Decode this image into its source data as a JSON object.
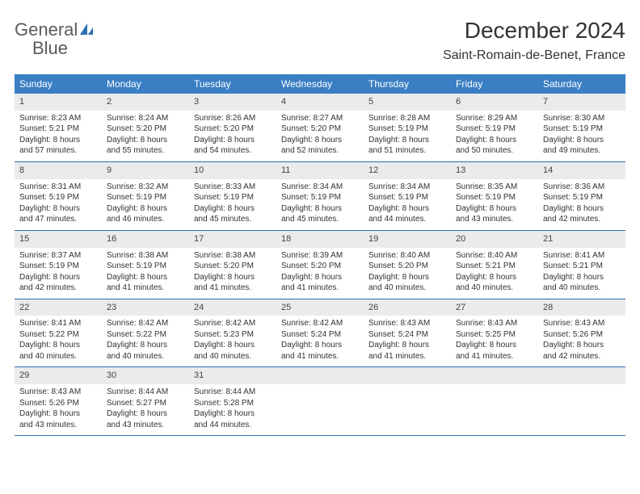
{
  "logo": {
    "text_gray": "General",
    "text_blue": "Blue"
  },
  "title": "December 2024",
  "location": "Saint-Romain-de-Benet, France",
  "colors": {
    "header_bg": "#3a7fc4",
    "header_text": "#ffffff",
    "daynum_bg": "#e9ebed",
    "week_border": "#2d6fb5",
    "body_text": "#333333"
  },
  "day_names": [
    "Sunday",
    "Monday",
    "Tuesday",
    "Wednesday",
    "Thursday",
    "Friday",
    "Saturday"
  ],
  "weeks": [
    [
      {
        "n": "1",
        "sr": "Sunrise: 8:23 AM",
        "ss": "Sunset: 5:21 PM",
        "d1": "Daylight: 8 hours",
        "d2": "and 57 minutes."
      },
      {
        "n": "2",
        "sr": "Sunrise: 8:24 AM",
        "ss": "Sunset: 5:20 PM",
        "d1": "Daylight: 8 hours",
        "d2": "and 55 minutes."
      },
      {
        "n": "3",
        "sr": "Sunrise: 8:26 AM",
        "ss": "Sunset: 5:20 PM",
        "d1": "Daylight: 8 hours",
        "d2": "and 54 minutes."
      },
      {
        "n": "4",
        "sr": "Sunrise: 8:27 AM",
        "ss": "Sunset: 5:20 PM",
        "d1": "Daylight: 8 hours",
        "d2": "and 52 minutes."
      },
      {
        "n": "5",
        "sr": "Sunrise: 8:28 AM",
        "ss": "Sunset: 5:19 PM",
        "d1": "Daylight: 8 hours",
        "d2": "and 51 minutes."
      },
      {
        "n": "6",
        "sr": "Sunrise: 8:29 AM",
        "ss": "Sunset: 5:19 PM",
        "d1": "Daylight: 8 hours",
        "d2": "and 50 minutes."
      },
      {
        "n": "7",
        "sr": "Sunrise: 8:30 AM",
        "ss": "Sunset: 5:19 PM",
        "d1": "Daylight: 8 hours",
        "d2": "and 49 minutes."
      }
    ],
    [
      {
        "n": "8",
        "sr": "Sunrise: 8:31 AM",
        "ss": "Sunset: 5:19 PM",
        "d1": "Daylight: 8 hours",
        "d2": "and 47 minutes."
      },
      {
        "n": "9",
        "sr": "Sunrise: 8:32 AM",
        "ss": "Sunset: 5:19 PM",
        "d1": "Daylight: 8 hours",
        "d2": "and 46 minutes."
      },
      {
        "n": "10",
        "sr": "Sunrise: 8:33 AM",
        "ss": "Sunset: 5:19 PM",
        "d1": "Daylight: 8 hours",
        "d2": "and 45 minutes."
      },
      {
        "n": "11",
        "sr": "Sunrise: 8:34 AM",
        "ss": "Sunset: 5:19 PM",
        "d1": "Daylight: 8 hours",
        "d2": "and 45 minutes."
      },
      {
        "n": "12",
        "sr": "Sunrise: 8:34 AM",
        "ss": "Sunset: 5:19 PM",
        "d1": "Daylight: 8 hours",
        "d2": "and 44 minutes."
      },
      {
        "n": "13",
        "sr": "Sunrise: 8:35 AM",
        "ss": "Sunset: 5:19 PM",
        "d1": "Daylight: 8 hours",
        "d2": "and 43 minutes."
      },
      {
        "n": "14",
        "sr": "Sunrise: 8:36 AM",
        "ss": "Sunset: 5:19 PM",
        "d1": "Daylight: 8 hours",
        "d2": "and 42 minutes."
      }
    ],
    [
      {
        "n": "15",
        "sr": "Sunrise: 8:37 AM",
        "ss": "Sunset: 5:19 PM",
        "d1": "Daylight: 8 hours",
        "d2": "and 42 minutes."
      },
      {
        "n": "16",
        "sr": "Sunrise: 8:38 AM",
        "ss": "Sunset: 5:19 PM",
        "d1": "Daylight: 8 hours",
        "d2": "and 41 minutes."
      },
      {
        "n": "17",
        "sr": "Sunrise: 8:38 AM",
        "ss": "Sunset: 5:20 PM",
        "d1": "Daylight: 8 hours",
        "d2": "and 41 minutes."
      },
      {
        "n": "18",
        "sr": "Sunrise: 8:39 AM",
        "ss": "Sunset: 5:20 PM",
        "d1": "Daylight: 8 hours",
        "d2": "and 41 minutes."
      },
      {
        "n": "19",
        "sr": "Sunrise: 8:40 AM",
        "ss": "Sunset: 5:20 PM",
        "d1": "Daylight: 8 hours",
        "d2": "and 40 minutes."
      },
      {
        "n": "20",
        "sr": "Sunrise: 8:40 AM",
        "ss": "Sunset: 5:21 PM",
        "d1": "Daylight: 8 hours",
        "d2": "and 40 minutes."
      },
      {
        "n": "21",
        "sr": "Sunrise: 8:41 AM",
        "ss": "Sunset: 5:21 PM",
        "d1": "Daylight: 8 hours",
        "d2": "and 40 minutes."
      }
    ],
    [
      {
        "n": "22",
        "sr": "Sunrise: 8:41 AM",
        "ss": "Sunset: 5:22 PM",
        "d1": "Daylight: 8 hours",
        "d2": "and 40 minutes."
      },
      {
        "n": "23",
        "sr": "Sunrise: 8:42 AM",
        "ss": "Sunset: 5:22 PM",
        "d1": "Daylight: 8 hours",
        "d2": "and 40 minutes."
      },
      {
        "n": "24",
        "sr": "Sunrise: 8:42 AM",
        "ss": "Sunset: 5:23 PM",
        "d1": "Daylight: 8 hours",
        "d2": "and 40 minutes."
      },
      {
        "n": "25",
        "sr": "Sunrise: 8:42 AM",
        "ss": "Sunset: 5:24 PM",
        "d1": "Daylight: 8 hours",
        "d2": "and 41 minutes."
      },
      {
        "n": "26",
        "sr": "Sunrise: 8:43 AM",
        "ss": "Sunset: 5:24 PM",
        "d1": "Daylight: 8 hours",
        "d2": "and 41 minutes."
      },
      {
        "n": "27",
        "sr": "Sunrise: 8:43 AM",
        "ss": "Sunset: 5:25 PM",
        "d1": "Daylight: 8 hours",
        "d2": "and 41 minutes."
      },
      {
        "n": "28",
        "sr": "Sunrise: 8:43 AM",
        "ss": "Sunset: 5:26 PM",
        "d1": "Daylight: 8 hours",
        "d2": "and 42 minutes."
      }
    ],
    [
      {
        "n": "29",
        "sr": "Sunrise: 8:43 AM",
        "ss": "Sunset: 5:26 PM",
        "d1": "Daylight: 8 hours",
        "d2": "and 43 minutes."
      },
      {
        "n": "30",
        "sr": "Sunrise: 8:44 AM",
        "ss": "Sunset: 5:27 PM",
        "d1": "Daylight: 8 hours",
        "d2": "and 43 minutes."
      },
      {
        "n": "31",
        "sr": "Sunrise: 8:44 AM",
        "ss": "Sunset: 5:28 PM",
        "d1": "Daylight: 8 hours",
        "d2": "and 44 minutes."
      },
      {
        "n": "",
        "sr": "",
        "ss": "",
        "d1": "",
        "d2": "",
        "empty": true
      },
      {
        "n": "",
        "sr": "",
        "ss": "",
        "d1": "",
        "d2": "",
        "empty": true
      },
      {
        "n": "",
        "sr": "",
        "ss": "",
        "d1": "",
        "d2": "",
        "empty": true
      },
      {
        "n": "",
        "sr": "",
        "ss": "",
        "d1": "",
        "d2": "",
        "empty": true
      }
    ]
  ]
}
